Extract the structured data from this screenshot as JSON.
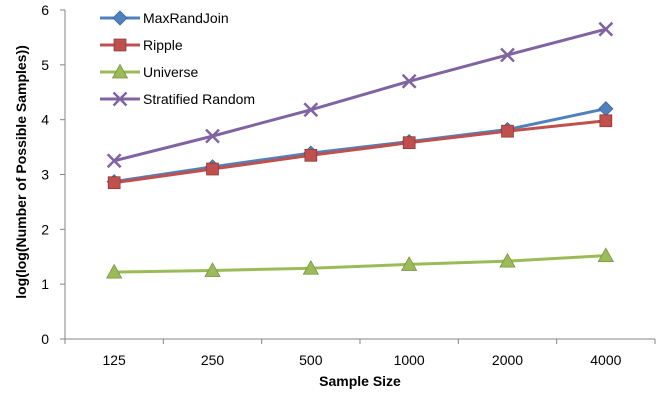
{
  "chart_data": {
    "type": "line",
    "title": "",
    "xlabel": "Sample Size",
    "ylabel": "log(log(Number of Possible Samples))",
    "categories": [
      "125",
      "250",
      "500",
      "1000",
      "2000",
      "4000"
    ],
    "ylim": [
      0,
      6
    ],
    "yticks": [
      "0",
      "1",
      "2",
      "3",
      "4",
      "5",
      "6"
    ],
    "grid": false,
    "legend_position": "top-left",
    "series": [
      {
        "name": "MaxRandJoin",
        "values": [
          2.87,
          3.14,
          3.39,
          3.6,
          3.82,
          4.2
        ],
        "color": "#4f81bd",
        "marker": "diamond"
      },
      {
        "name": "Ripple",
        "values": [
          2.85,
          3.1,
          3.35,
          3.58,
          3.79,
          3.98
        ],
        "color": "#c0504d",
        "marker": "square"
      },
      {
        "name": "Universe",
        "values": [
          1.22,
          1.25,
          1.29,
          1.36,
          1.42,
          1.52
        ],
        "color": "#9bbb59",
        "marker": "triangle"
      },
      {
        "name": "Stratified Random",
        "values": [
          3.25,
          3.7,
          4.18,
          4.7,
          5.18,
          5.65
        ],
        "color": "#8064a2",
        "marker": "x"
      }
    ]
  }
}
